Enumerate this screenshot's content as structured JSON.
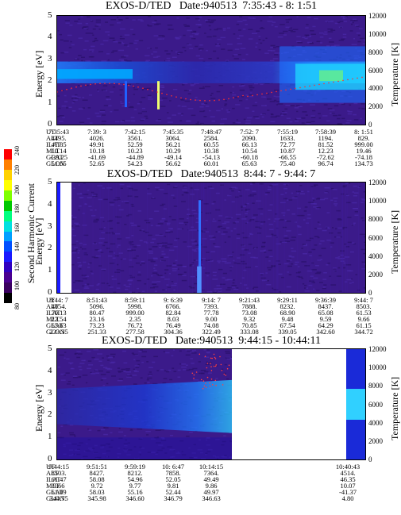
{
  "panels": [
    {
      "title": "EXOS-D/TED   Date:940513  7:35:43 - 8: 1:51",
      "ylabel": "Energy [eV]",
      "rlabel": "Temperature [K]",
      "yticks": [
        "5",
        "4",
        "3",
        "2",
        "1",
        "0"
      ],
      "rticks": [
        "12000",
        "10000",
        "8000",
        "6000",
        "4000",
        "2000",
        "0"
      ],
      "rows": [
        {
          "label": "UT",
          "values": [
            "7:35:43",
            "7:39: 3",
            "7:42:15",
            "7:45:35",
            "7:48:47",
            "7:52: 7",
            "7:55:19",
            "7:58:39",
            "8: 1:51"
          ]
        },
        {
          "label": "ALT",
          "values": [
            "4495.",
            "4026.",
            "3561.",
            "3064.",
            "2584.",
            "2090.",
            "1633.",
            "1194.",
            "829."
          ]
        },
        {
          "label": "ILAT",
          "values": [
            "47.85",
            "49.91",
            "52.59",
            "56.21",
            "60.55",
            "66.13",
            "72.77",
            "81.52",
            "999.00"
          ]
        },
        {
          "label": "MLT",
          "values": [
            "10.14",
            "10.18",
            "10.23",
            "10.29",
            "10.38",
            "10.54",
            "10.87",
            "12.23",
            "19.46"
          ]
        },
        {
          "label": "GLAT",
          "values": [
            "-39.25",
            "-41.69",
            "-44.89",
            "-49.14",
            "-54.13",
            "-60.18",
            "-66.55",
            "-72.62",
            "-74.18"
          ]
        },
        {
          "label": "GLON",
          "values": [
            "51.55",
            "52.65",
            "54.23",
            "56.62",
            "60.01",
            "65.63",
            "75.40",
            "96.74",
            "134.73"
          ]
        }
      ]
    },
    {
      "title": "EXOS-D/TED   Date:940513  8:44: 7 - 9:44: 7",
      "ylabel": "Energy [eV]",
      "rlabel": "Temperature [K]",
      "yticks": [
        "5",
        "4",
        "3",
        "2",
        "1",
        "0"
      ],
      "rticks": [
        "12000",
        "10000",
        "8000",
        "6000",
        "4000",
        "2000",
        "0"
      ],
      "rows": [
        {
          "label": "UT",
          "values": [
            "8:44: 7",
            "8:51:43",
            "8:59:11",
            "9: 6:39",
            "9:14: 7",
            "9:21:43",
            "9:29:11",
            "9:36:39",
            "9:44: 7"
          ]
        },
        {
          "label": "ALT",
          "values": [
            "4054.",
            "5096.",
            "5998.",
            "6766.",
            "7393.",
            "7888.",
            "8232.",
            "8437.",
            "8503."
          ]
        },
        {
          "label": "ILAT",
          "values": [
            "70.13",
            "80.47",
            "999.00",
            "82.84",
            "77.78",
            "73.08",
            "68.90",
            "65.08",
            "61.53"
          ]
        },
        {
          "label": "MLT",
          "values": [
            "22.54",
            "23.16",
            "2.35",
            "8.03",
            "9.00",
            "9.32",
            "9.48",
            "9.59",
            "9.66"
          ]
        },
        {
          "label": "GLAT",
          "values": [
            "65.63",
            "73.23",
            "76.72",
            "76.49",
            "74.08",
            "70.85",
            "67.54",
            "64.29",
            "61.15"
          ]
        },
        {
          "label": "GLON",
          "values": [
            "233.35",
            "251.33",
            "277.58",
            "304.36",
            "322.49",
            "333.08",
            "339.05",
            "342.60",
            "344.72"
          ]
        }
      ]
    },
    {
      "title": "EXOS-D/TED   Date:940513  9:44:15 - 10:44:11",
      "ylabel": "Energy [eV]",
      "rlabel": "Temperature [K]",
      "yticks": [
        "5",
        "4",
        "3",
        "2",
        "1",
        "0"
      ],
      "rticks": [
        "12000",
        "10000",
        "8000",
        "6000",
        "4000",
        "2000",
        "0"
      ],
      "rows": [
        {
          "label": "UT",
          "values": [
            "9:44:15",
            "9:51:51",
            "9:59:19",
            "10: 6:47",
            "10:14:15",
            "",
            "",
            "",
            "10:40:43"
          ]
        },
        {
          "label": "ALT",
          "values": [
            "8503.",
            "8427.",
            "8212.",
            "7858.",
            "7364.",
            "",
            "",
            "",
            "4514."
          ]
        },
        {
          "label": "ILAT",
          "values": [
            "61.47",
            "58.08",
            "54.96",
            "52.05",
            "49.49",
            "",
            "",
            "",
            "46.35"
          ]
        },
        {
          "label": "MLT",
          "values": [
            "9.66",
            "9.72",
            "9.77",
            "9.81",
            "9.86",
            "",
            "",
            "",
            "10.07"
          ]
        },
        {
          "label": "GLAT",
          "values": [
            "61.09",
            "58.03",
            "55.16",
            "52.44",
            "49.97",
            "",
            "",
            "",
            "-41.37"
          ]
        },
        {
          "label": "GLON",
          "values": [
            "344.75",
            "345.98",
            "346.60",
            "346.79",
            "346.63",
            "",
            "",
            "",
            "4.80"
          ]
        }
      ]
    }
  ],
  "colorbar": {
    "label": "Second Harmonic Current",
    "ticks": [
      "240",
      "220",
      "200",
      "180",
      "160",
      "140",
      "120",
      "100",
      "80"
    ],
    "colors": [
      "#ff0000",
      "#ff8000",
      "#ffd200",
      "#ffff00",
      "#80ff00",
      "#00c800",
      "#00ff80",
      "#00e0e0",
      "#00a0ff",
      "#0050ff",
      "#1a1aff",
      "#3000c0",
      "#4a0090",
      "#3a0060",
      "#000000"
    ]
  }
}
